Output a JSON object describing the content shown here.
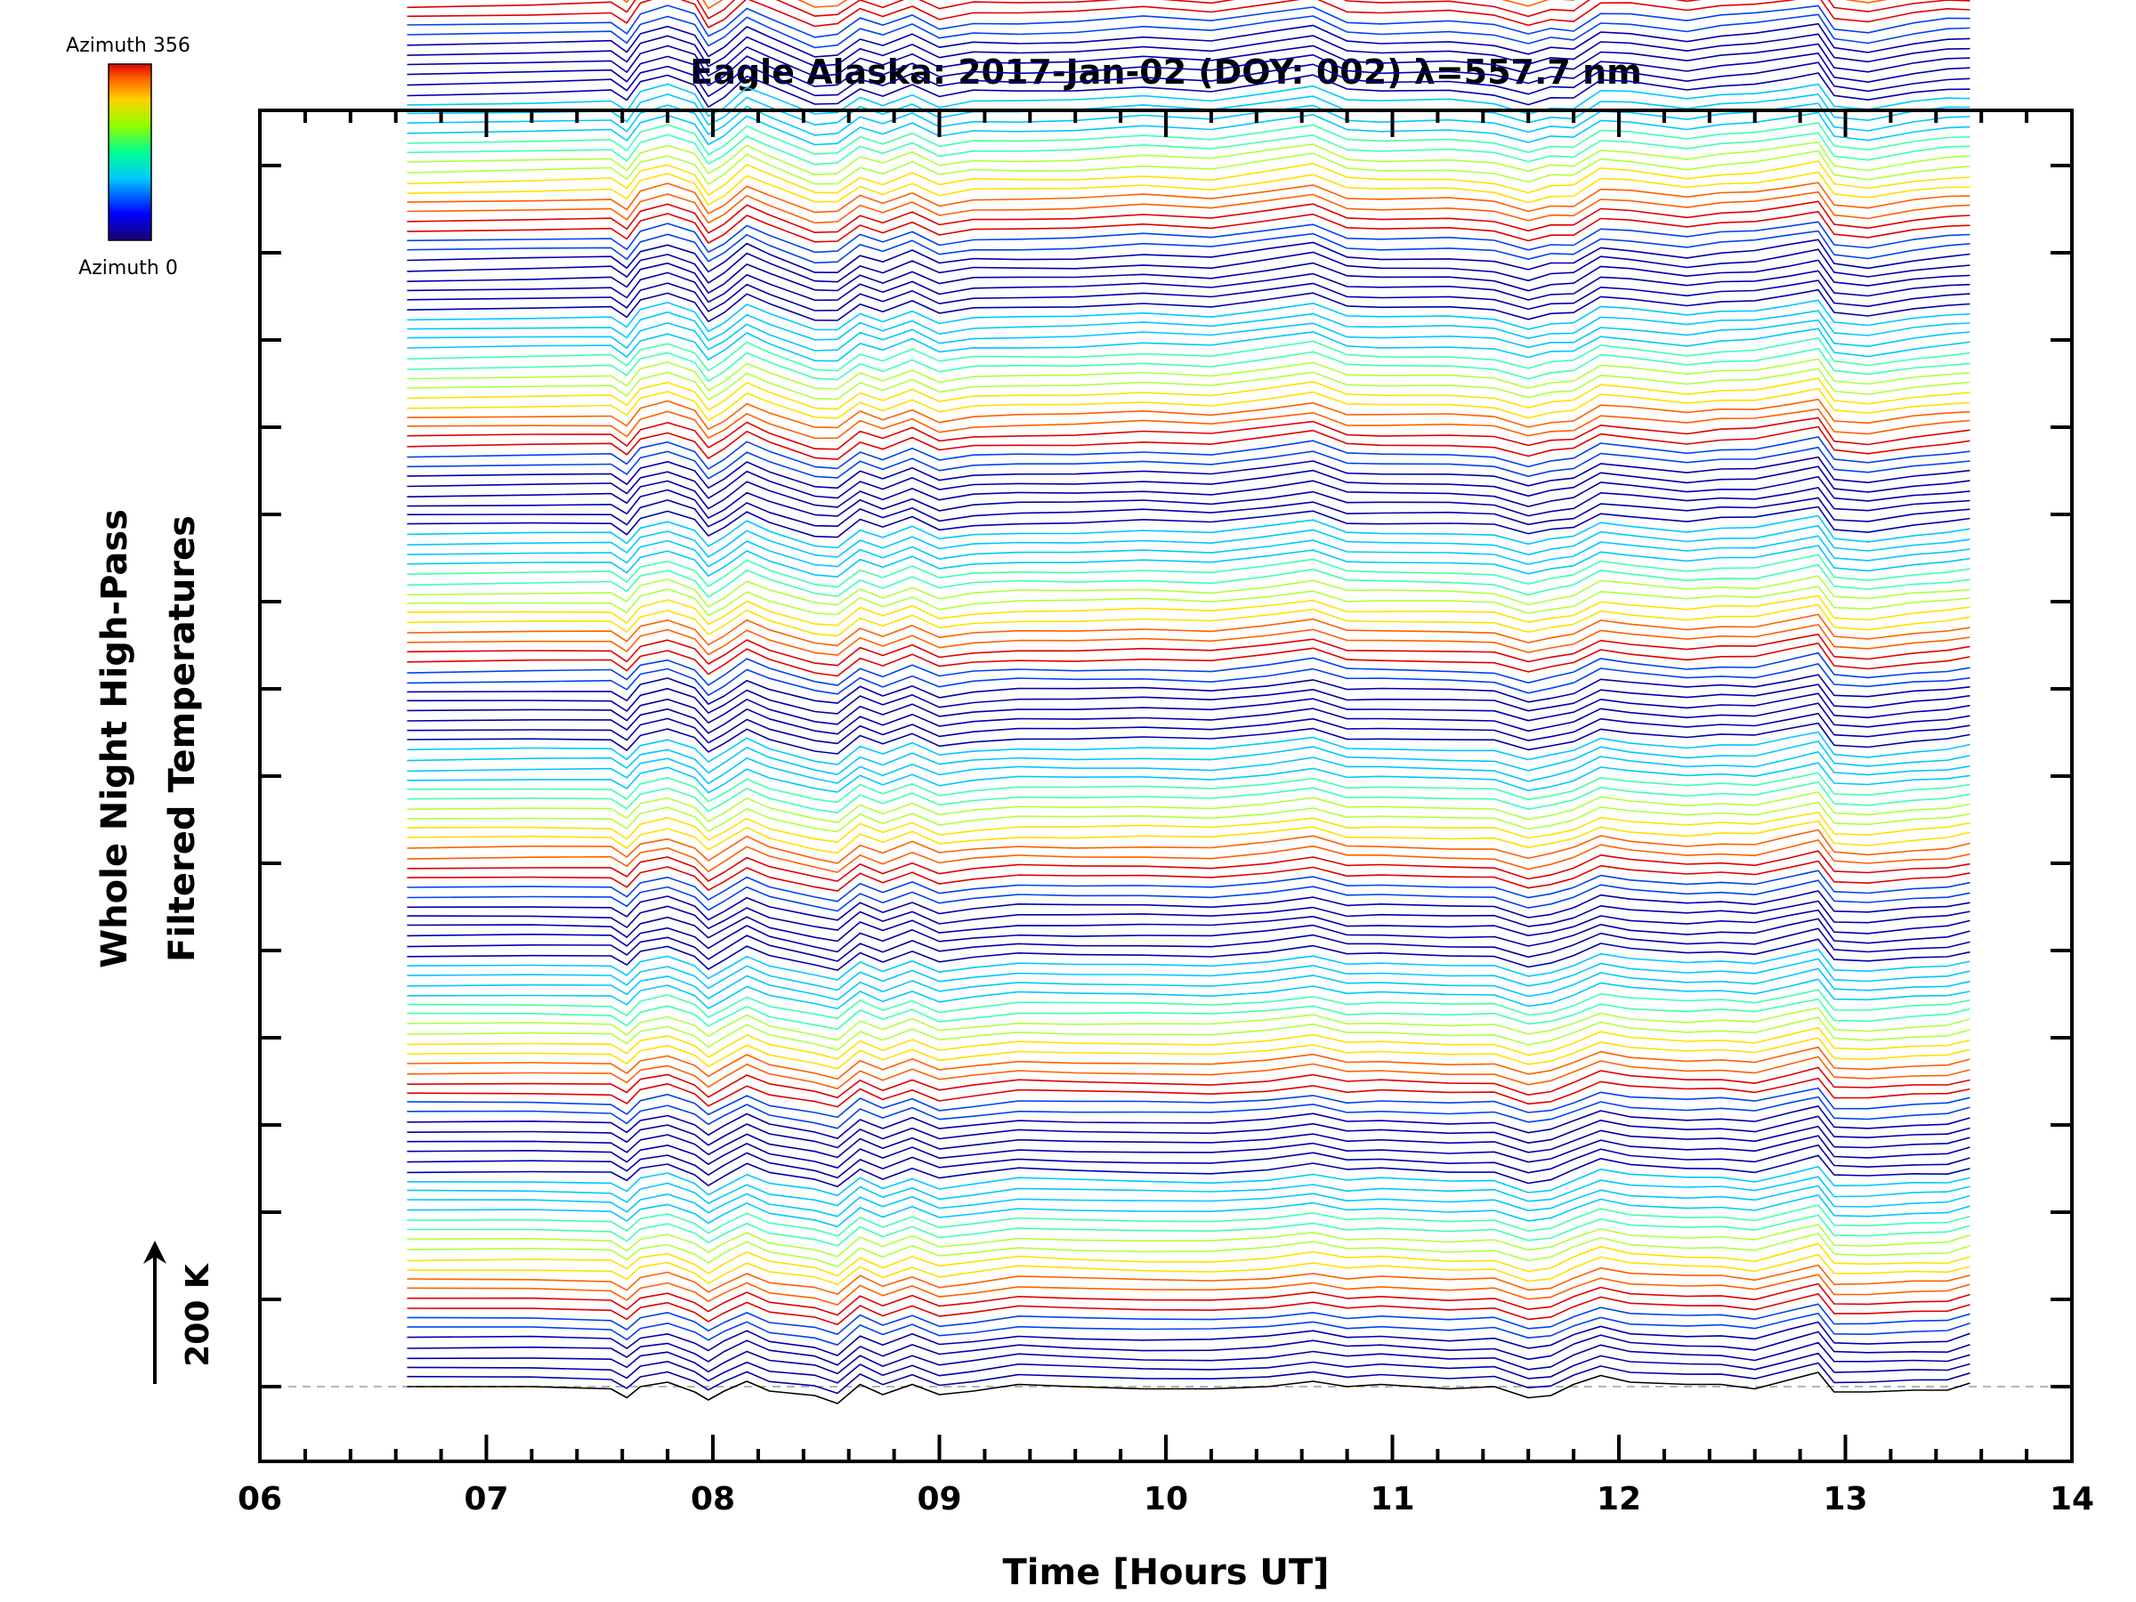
{
  "chart_data": {
    "type": "line",
    "title": "Eagle Alaska: 2017-Jan-02 (DOY: 002) λ=557.7 nm",
    "xlabel": "Time [Hours UT]",
    "ylabel_line1": "Whole Night High-Pass",
    "ylabel_line2": "Filtered Temperatures",
    "scale_label": "200 K",
    "colorbar": {
      "top_label": "Azimuth  356",
      "bottom_label": "Azimuth  0"
    },
    "xlim": [
      6,
      14
    ],
    "x_ticks": [
      "06",
      "07",
      "08",
      "09",
      "10",
      "11",
      "12",
      "13",
      "14"
    ],
    "y_axis_numbered": false,
    "series_count": 143,
    "series_offset_K": 22,
    "azimuth_range_deg": [
      0,
      356
    ],
    "x": [
      6.65,
      7.2,
      7.55,
      7.62,
      7.68,
      7.8,
      7.92,
      7.98,
      8.05,
      8.15,
      8.25,
      8.45,
      8.55,
      8.65,
      8.75,
      8.88,
      9.0,
      9.15,
      9.35,
      9.6,
      9.9,
      10.2,
      10.45,
      10.65,
      10.8,
      10.95,
      11.25,
      11.45,
      11.6,
      11.7,
      11.8,
      11.92,
      12.05,
      12.3,
      12.45,
      12.6,
      12.75,
      12.88,
      12.95,
      13.1,
      13.3,
      13.45,
      13.55
    ],
    "baseline_profile": [
      0,
      0,
      -5,
      -25,
      0,
      10,
      -12,
      -30,
      -10,
      12,
      -10,
      -20,
      -38,
      5,
      -18,
      5,
      -18,
      -10,
      5,
      0,
      -5,
      -5,
      0,
      12,
      0,
      5,
      -5,
      0,
      -25,
      -20,
      5,
      25,
      10,
      5,
      5,
      -5,
      15,
      32,
      -12,
      -12,
      -8,
      -8,
      8
    ],
    "top_profile": [
      0,
      5,
      10,
      -15,
      28,
      45,
      25,
      -25,
      -5,
      42,
      20,
      -25,
      -20,
      15,
      0,
      25,
      -5,
      8,
      5,
      8,
      20,
      10,
      30,
      45,
      10,
      5,
      10,
      0,
      -20,
      -5,
      -10,
      30,
      28,
      10,
      22,
      28,
      38,
      48,
      -5,
      -15,
      5,
      15,
      15
    ],
    "series_style": {
      "palette_order": "blue → orange/red → yellow → green → cyan, repeating",
      "colors": [
        "#0000aa",
        "#0044ee",
        "#00c8ff",
        "#40ffb0",
        "#b0ff40",
        "#ffe000",
        "#ff6000",
        "#e00000"
      ]
    },
    "reference_line": {
      "y": 0,
      "style": "dashed",
      "color": "#b4b4b4"
    }
  }
}
